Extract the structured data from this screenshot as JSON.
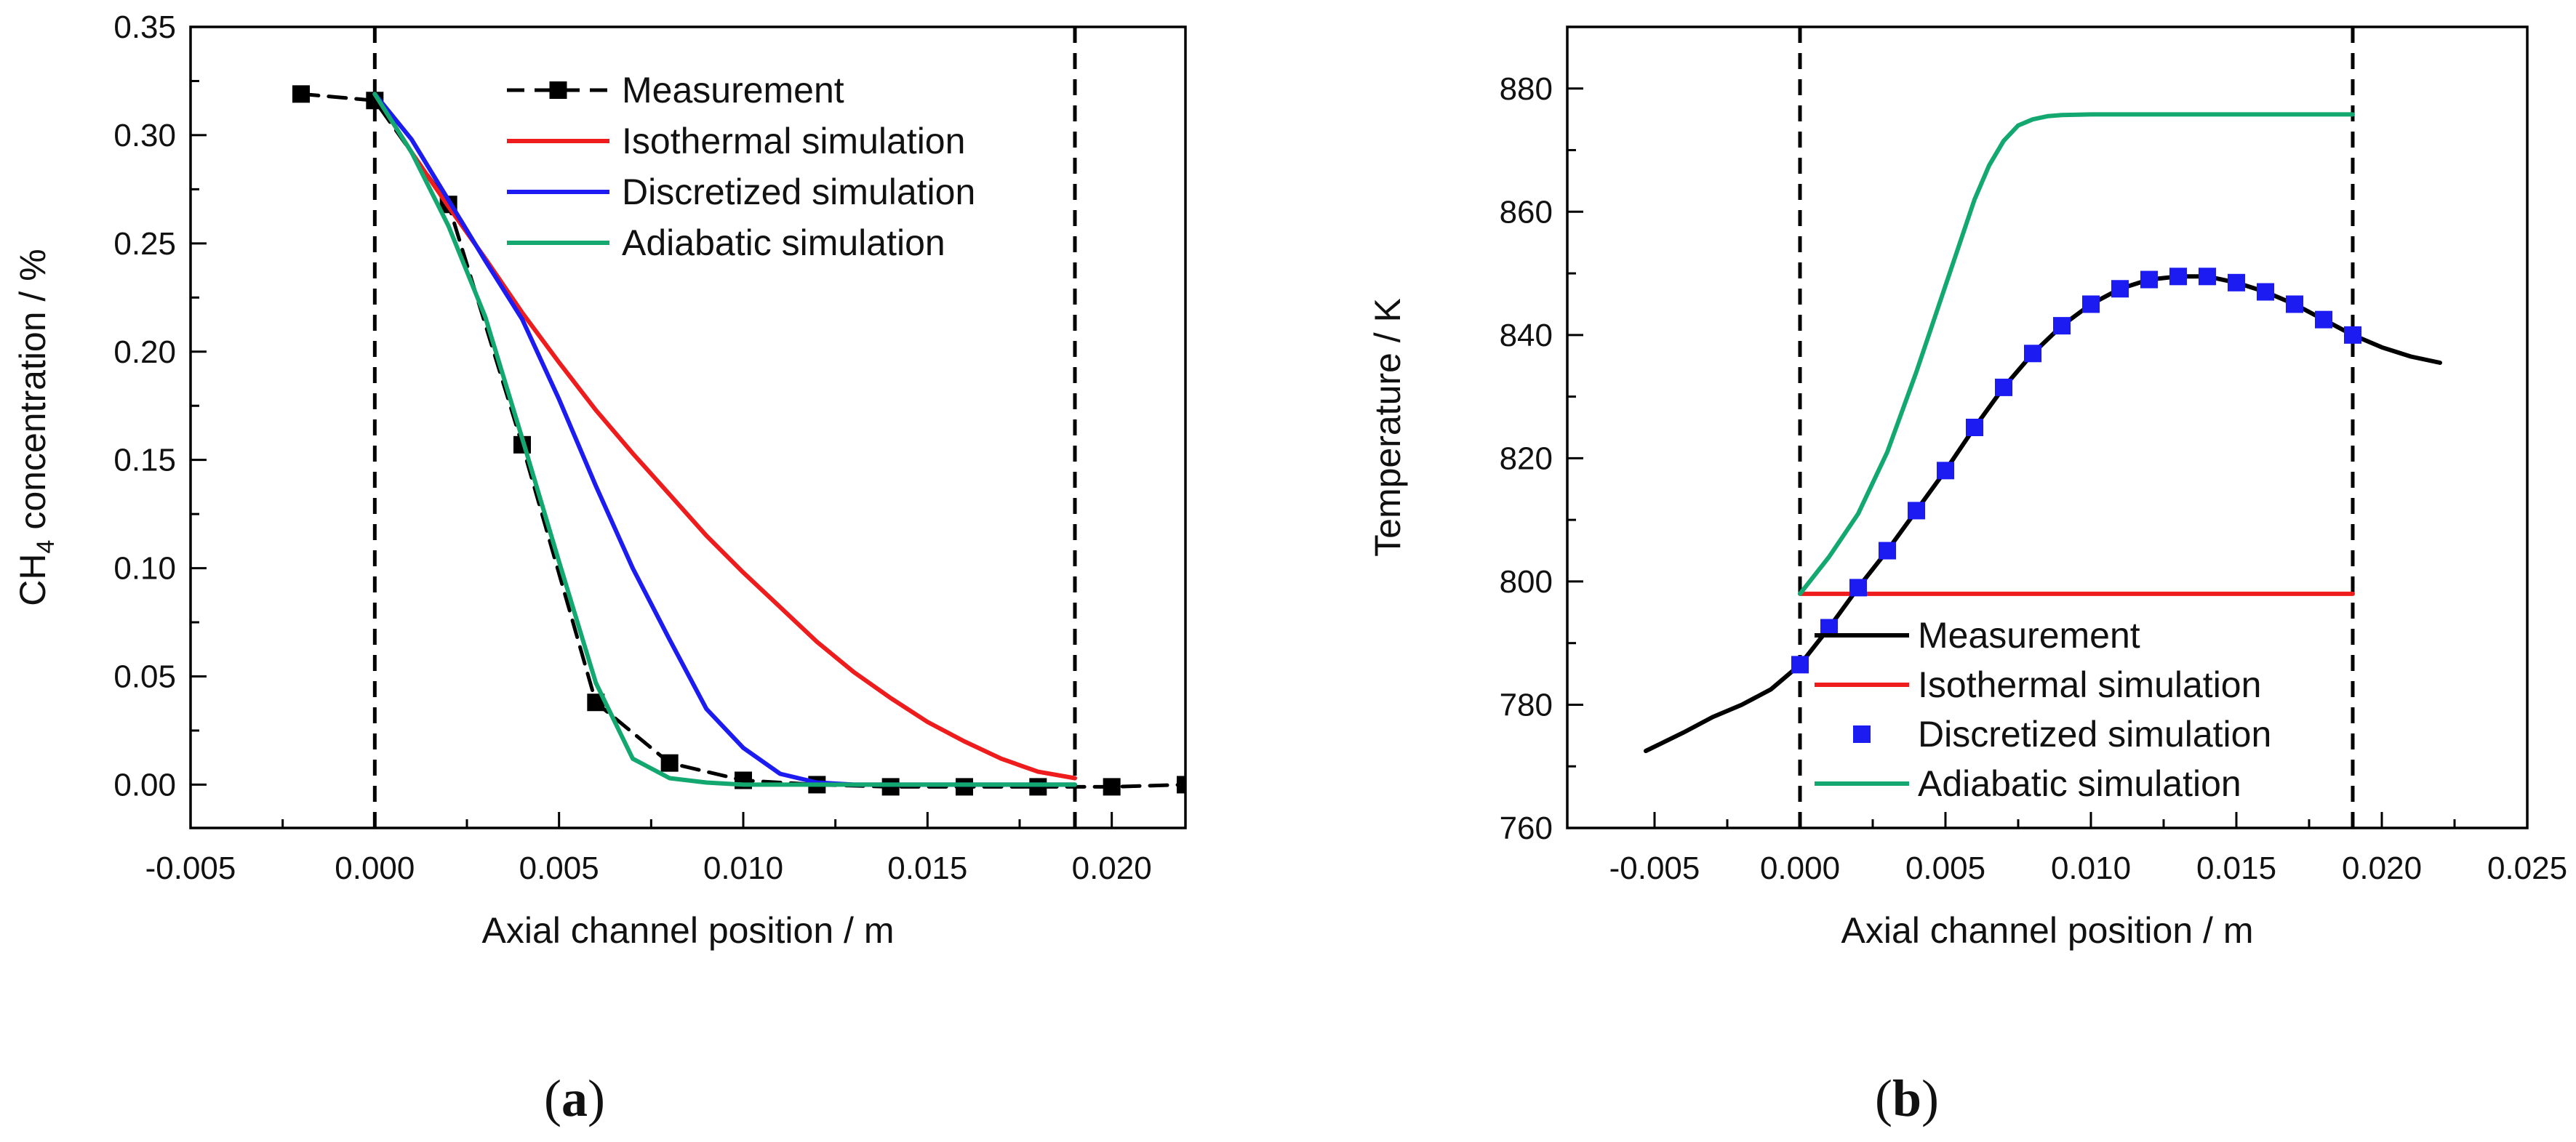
{
  "panels": [
    {
      "caption_open": "(",
      "caption_letter": "a",
      "caption_close": ")",
      "chart_data": {
        "type": "line",
        "xlabel": "Axial channel position / m",
        "ylabel_main": "CH",
        "ylabel_sub": "4",
        "ylabel_rest": " concentration / %",
        "xlim": [
          -0.005,
          0.022
        ],
        "ylim": [
          -0.02,
          0.35
        ],
        "xticks": [
          -0.005,
          0.0,
          0.005,
          0.01,
          0.015,
          0.02
        ],
        "xtick_labels": [
          "-0.005",
          "0.000",
          "0.005",
          "0.010",
          "0.015",
          "0.020"
        ],
        "yticks": [
          0.0,
          0.05,
          0.1,
          0.15,
          0.2,
          0.25,
          0.3,
          0.35
        ],
        "ytick_labels": [
          "0.00",
          "0.05",
          "0.10",
          "0.15",
          "0.20",
          "0.25",
          "0.30",
          "0.35"
        ],
        "vlines": [
          0.0,
          0.019
        ],
        "legend_position": "top-right",
        "series": [
          {
            "name": "Measurement",
            "style": "dashed-markers",
            "color": "#000000",
            "marker": "square",
            "x": [
              -0.002,
              0.0,
              0.002,
              0.004,
              0.006,
              0.008,
              0.01,
              0.012,
              0.014,
              0.016,
              0.018,
              0.02,
              0.022
            ],
            "y": [
              0.319,
              0.316,
              0.268,
              0.157,
              0.038,
              0.01,
              0.002,
              0.0,
              -0.001,
              -0.001,
              -0.001,
              -0.001,
              0.0
            ]
          },
          {
            "name": "Isothermal simulation",
            "style": "solid",
            "color": "#ee1c1c",
            "x": [
              0.0,
              0.001,
              0.002,
              0.003,
              0.004,
              0.005,
              0.006,
              0.007,
              0.008,
              0.009,
              0.01,
              0.011,
              0.012,
              0.013,
              0.014,
              0.015,
              0.016,
              0.017,
              0.018,
              0.019
            ],
            "y": [
              0.319,
              0.292,
              0.267,
              0.243,
              0.218,
              0.195,
              0.173,
              0.153,
              0.134,
              0.115,
              0.098,
              0.082,
              0.066,
              0.052,
              0.04,
              0.029,
              0.02,
              0.012,
              0.006,
              0.003
            ]
          },
          {
            "name": "Discretized simulation",
            "style": "solid",
            "color": "#1c1cf2",
            "x": [
              0.0,
              0.001,
              0.002,
              0.003,
              0.004,
              0.005,
              0.006,
              0.007,
              0.008,
              0.009,
              0.01,
              0.011,
              0.012,
              0.013,
              0.014,
              0.016,
              0.019
            ],
            "y": [
              0.319,
              0.298,
              0.27,
              0.242,
              0.215,
              0.178,
              0.138,
              0.1,
              0.067,
              0.035,
              0.017,
              0.005,
              0.001,
              0.0,
              0.0,
              0.0,
              0.0
            ]
          },
          {
            "name": "Adiabatic simulation",
            "style": "solid",
            "color": "#12a870",
            "x": [
              0.0,
              0.001,
              0.002,
              0.003,
              0.004,
              0.005,
              0.006,
              0.007,
              0.008,
              0.009,
              0.01,
              0.012,
              0.014,
              0.016,
              0.019
            ],
            "y": [
              0.319,
              0.292,
              0.258,
              0.216,
              0.16,
              0.103,
              0.047,
              0.012,
              0.003,
              0.001,
              0.0,
              0.0,
              0.0,
              0.0,
              0.0
            ]
          }
        ]
      }
    },
    {
      "caption_open": "(",
      "caption_letter": "b",
      "caption_close": ")",
      "chart_data": {
        "type": "line",
        "xlabel": "Axial channel position / m",
        "ylabel_main": "Temperature / K",
        "ylabel_sub": "",
        "ylabel_rest": "",
        "xlim": [
          -0.008,
          0.025
        ],
        "ylim": [
          760,
          890
        ],
        "xticks": [
          -0.005,
          0.0,
          0.005,
          0.01,
          0.015,
          0.02,
          0.025
        ],
        "xtick_labels": [
          "-0.005",
          "0.000",
          "0.005",
          "0.010",
          "0.015",
          "0.020",
          "0.025"
        ],
        "yticks": [
          760,
          780,
          800,
          820,
          840,
          860,
          880
        ],
        "ytick_labels": [
          "760",
          "780",
          "800",
          "820",
          "840",
          "860",
          "880"
        ],
        "vlines": [
          0.0,
          0.019
        ],
        "legend_position": "bottom-center",
        "series": [
          {
            "name": "Measurement",
            "style": "solid",
            "color": "#000000",
            "x": [
              -0.0053,
              -0.004,
              -0.003,
              -0.002,
              -0.001,
              0.0,
              0.001,
              0.002,
              0.003,
              0.004,
              0.005,
              0.006,
              0.007,
              0.008,
              0.009,
              0.01,
              0.011,
              0.012,
              0.013,
              0.014,
              0.015,
              0.016,
              0.017,
              0.018,
              0.019,
              0.02,
              0.021,
              0.022
            ],
            "y": [
              772.5,
              775.5,
              778.0,
              780.0,
              782.5,
              786.5,
              792.5,
              799.0,
              805.0,
              811.5,
              818.0,
              825.0,
              831.5,
              837.0,
              841.5,
              845.0,
              847.5,
              849.0,
              849.5,
              849.5,
              848.5,
              847.0,
              845.0,
              842.5,
              840.0,
              838.0,
              836.5,
              835.5
            ]
          },
          {
            "name": "Isothermal simulation",
            "style": "solid",
            "color": "#ee1c1c",
            "x": [
              0.0,
              0.019
            ],
            "y": [
              798.0,
              798.0
            ]
          },
          {
            "name": "Discretized simulation",
            "style": "markers",
            "color": "#1c1cf2",
            "marker": "square",
            "x": [
              0.0,
              0.001,
              0.002,
              0.003,
              0.004,
              0.005,
              0.006,
              0.007,
              0.008,
              0.009,
              0.01,
              0.011,
              0.012,
              0.013,
              0.014,
              0.015,
              0.016,
              0.017,
              0.018,
              0.019
            ],
            "y": [
              786.5,
              792.5,
              799.0,
              805.0,
              811.5,
              818.0,
              825.0,
              831.5,
              837.0,
              841.5,
              845.0,
              847.5,
              849.0,
              849.5,
              849.5,
              848.5,
              847.0,
              845.0,
              842.5,
              840.0
            ]
          },
          {
            "name": "Adiabatic simulation",
            "style": "solid",
            "color": "#12a870",
            "x": [
              0.0,
              0.001,
              0.002,
              0.003,
              0.004,
              0.005,
              0.006,
              0.0065,
              0.007,
              0.0075,
              0.008,
              0.0085,
              0.009,
              0.01,
              0.012,
              0.015,
              0.019
            ],
            "y": [
              798.0,
              804.0,
              811.0,
              821.0,
              834.0,
              848.0,
              862.0,
              867.5,
              871.5,
              874.0,
              875.0,
              875.5,
              875.7,
              875.8,
              875.8,
              875.8,
              875.8
            ]
          }
        ]
      }
    }
  ]
}
